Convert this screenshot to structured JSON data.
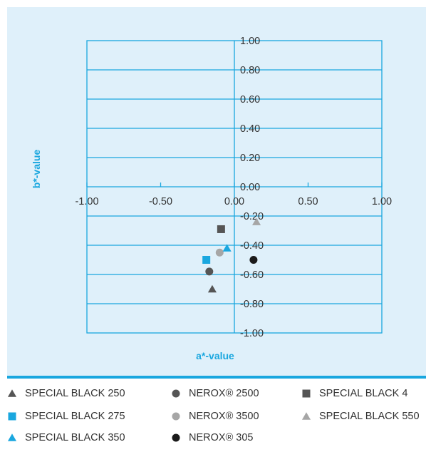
{
  "chart_data": {
    "type": "scatter",
    "xlabel": "a*-value",
    "ylabel": "b*-value",
    "xlim": [
      -1.0,
      1.0
    ],
    "ylim": [
      -1.0,
      1.0
    ],
    "x_tick_labels": [
      "-1.00",
      "-0.50",
      "0.00",
      "0.50",
      "1.00"
    ],
    "y_tick_labels": [
      "1.00",
      "0.80",
      "0.60",
      "0.40",
      "0.20",
      "0.00",
      "-0.20",
      "-0.40",
      "-0.60",
      "-0.80",
      "-1.00"
    ],
    "grid": true,
    "legend_position": "bottom",
    "colors": {
      "axis": "#1aa7df",
      "background": "#dff0fa",
      "dark_gray": "#555555",
      "light_gray": "#a6a6a6",
      "blue": "#1aa7df",
      "black": "#1a1a1a"
    },
    "series": [
      {
        "name": "SPECIAL BLACK 250",
        "marker": "triangle",
        "color": "#555555",
        "points": [
          {
            "x": -0.15,
            "y": -0.7
          }
        ]
      },
      {
        "name": "NEROX® 2500",
        "marker": "circle",
        "color": "#555555",
        "points": [
          {
            "x": -0.17,
            "y": -0.58
          }
        ]
      },
      {
        "name": "SPECIAL BLACK 4",
        "marker": "square",
        "color": "#555555",
        "points": [
          {
            "x": -0.09,
            "y": -0.29
          }
        ]
      },
      {
        "name": "SPECIAL BLACK 275",
        "marker": "square",
        "color": "#1aa7df",
        "points": [
          {
            "x": -0.19,
            "y": -0.5
          }
        ]
      },
      {
        "name": "NEROX® 3500",
        "marker": "circle",
        "color": "#a6a6a6",
        "points": [
          {
            "x": -0.1,
            "y": -0.45
          }
        ]
      },
      {
        "name": "SPECIAL BLACK 550",
        "marker": "triangle",
        "color": "#a6a6a6",
        "points": [
          {
            "x": 0.15,
            "y": -0.24
          }
        ]
      },
      {
        "name": "SPECIAL BLACK 350",
        "marker": "triangle",
        "color": "#1aa7df",
        "points": [
          {
            "x": -0.05,
            "y": -0.42
          }
        ]
      },
      {
        "name": "NEROX® 305",
        "marker": "circle",
        "color": "#1a1a1a",
        "points": [
          {
            "x": 0.13,
            "y": -0.5
          }
        ]
      }
    ]
  }
}
